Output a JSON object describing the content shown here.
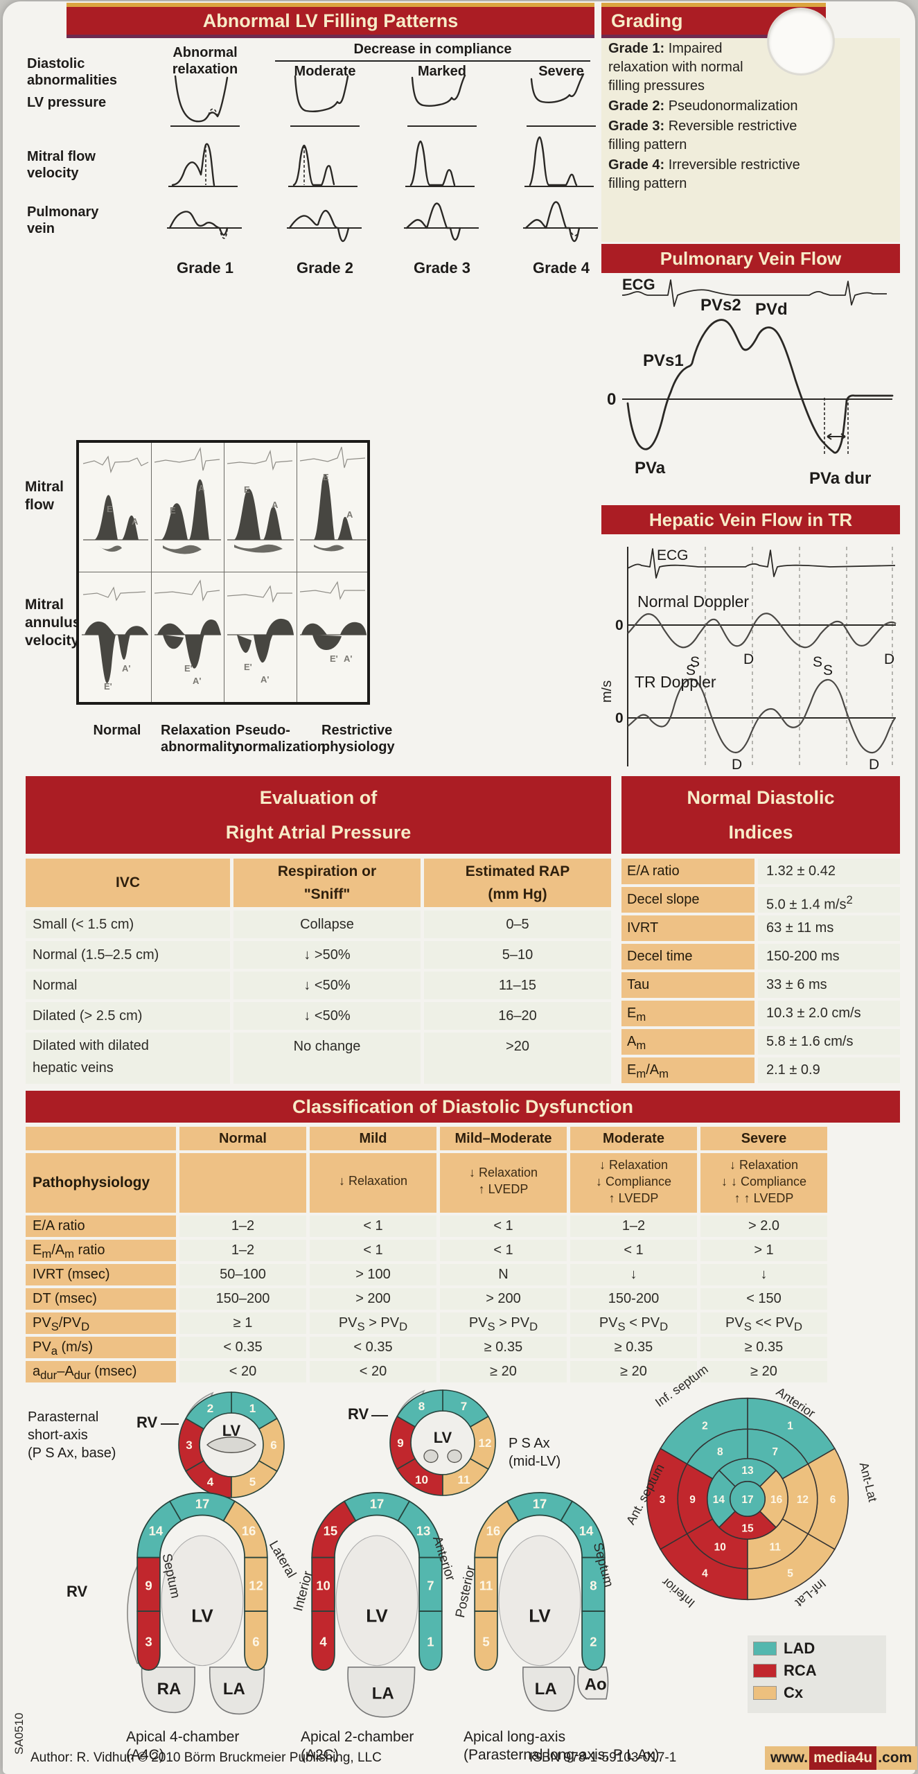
{
  "title": "Abnormal LV Filling Patterns",
  "filling": {
    "corner_label": "Diastolic|abnormalities",
    "col0": "Abnormal|relaxation",
    "group": "Decrease in compliance",
    "cols": [
      "Moderate",
      "Marked",
      "Severe"
    ],
    "rows": [
      "LV pressure",
      "Mitral flow|velocity",
      "Pulmonary|vein"
    ],
    "grades": [
      "Grade 1",
      "Grade 2",
      "Grade 3",
      "Grade 4"
    ]
  },
  "grading": {
    "title": "Grading",
    "items": [
      {
        "prefix": "Grade 1:",
        "text": " Impaired|relaxation with normal|filling pressures"
      },
      {
        "prefix": "Grade 2:",
        "text": " Pseudonormalization"
      },
      {
        "prefix": "Grade 3:",
        "text": " Reversible restrictive|filling pattern"
      },
      {
        "prefix": "Grade 4:",
        "text": " Irreversible restrictive|filling pattern"
      }
    ]
  },
  "pvflow": {
    "title": "Pulmonary Vein Flow",
    "ecg": "ECG",
    "pvs2": "PVs2",
    "pvd": "PVd",
    "pvs1": "PVs1",
    "zero": "0",
    "pva": "PVa",
    "pvadur": "PVa dur"
  },
  "hepatic": {
    "title": "Hepatic Vein Flow in TR",
    "ecg": "ECG",
    "normal_doppler": "Normal Doppler",
    "tr_doppler": "TR Doppler",
    "ms": "m/s",
    "zero1": "0",
    "zero2": "0",
    "nd_s1": "S",
    "nd_d1": "D",
    "nd_s2": "S",
    "nd_d2": "D",
    "tr_s1": "S",
    "tr_s2": "S",
    "tr_d1": "D",
    "tr_d2": "D"
  },
  "echo": {
    "row1": "Mitral|flow",
    "row2": "Mitral|annulus|velocity",
    "cols": [
      "Normal",
      "Relaxation|abnormality",
      "Pseudo-|normalization",
      "Restrictive|physiology"
    ],
    "top_letters": [
      [
        "E",
        "A"
      ],
      [
        "E",
        "A"
      ],
      [
        "E",
        "A"
      ],
      [
        "E",
        "A"
      ]
    ],
    "bot_letters": [
      [
        "E'",
        "A'"
      ],
      [
        "E'",
        "A'"
      ],
      [
        "E'",
        "A'"
      ],
      [
        "E'",
        "A'"
      ]
    ]
  },
  "rap": {
    "title": "Evaluation of|Right Atrial Pressure",
    "headers": [
      "IVC",
      "Respiration or|\"Sniff\"",
      "Estimated RAP|(mm Hg)"
    ],
    "rows": [
      {
        "ivc": "Small (< 1.5 cm)",
        "resp": "Collapse",
        "rap": "0–5"
      },
      {
        "ivc": "Normal (1.5–2.5 cm)",
        "resp": "↓ >50%",
        "rap": "5–10"
      },
      {
        "ivc": "Normal",
        "resp": "↓ <50%",
        "rap": "11–15"
      },
      {
        "ivc": "Dilated (> 2.5 cm)",
        "resp": "↓ <50%",
        "rap": "16–20"
      },
      {
        "ivc": "Dilated with dilated|hepatic veins",
        "resp": "No change",
        "rap": ">20"
      }
    ]
  },
  "indices": {
    "title": "Normal Diastolic|Indices",
    "rows": [
      {
        "label": "E/A ratio",
        "value": "1.32 ± 0.42"
      },
      {
        "label": "Decel slope",
        "value": "5.0 ± 1.4 m/s^2^"
      },
      {
        "label": "IVRT",
        "value": "63 ± 11 ms"
      },
      {
        "label": "Decel time",
        "value": "150-200 ms"
      },
      {
        "label": "Tau",
        "value": "33 ± 6 ms"
      },
      {
        "label": "E~m~",
        "value": "10.3 ± 2.0 cm/s"
      },
      {
        "label": "A~m~",
        "value": "5.8 ± 1.6 cm/s"
      },
      {
        "label": "E~m~/A~m~",
        "value": "2.1 ± 0.9"
      }
    ]
  },
  "cls": {
    "title": "Classification of Diastolic Dysfunction",
    "headers": [
      "Normal",
      "Mild",
      "Mild–Moderate",
      "Moderate",
      "Severe"
    ],
    "patho_label": "Pathophysiology",
    "patho": [
      "",
      "↓ Relaxation",
      "↓ Relaxation|↑ LVEDP",
      "↓ Relaxation|↓ Compliance|↑ LVEDP",
      "↓ Relaxation|↓ ↓ Compliance|↑ ↑ LVEDP"
    ],
    "rows": [
      {
        "label": "E/A ratio",
        "vals": [
          "1–2",
          "< 1",
          "< 1",
          "1–2",
          "> 2.0"
        ]
      },
      {
        "label": "E~m~/A~m~ ratio",
        "vals": [
          "1–2",
          "< 1",
          "< 1",
          "< 1",
          "> 1"
        ]
      },
      {
        "label": "IVRT (msec)",
        "vals": [
          "50–100",
          "> 100",
          "N",
          "↓",
          "↓"
        ]
      },
      {
        "label": "DT (msec)",
        "vals": [
          "150–200",
          "> 200",
          "> 200",
          "150-200",
          "< 150"
        ]
      },
      {
        "label": "PV~S~/PV~D~",
        "vals": [
          "≥ 1",
          "PV~S~ > PV~D~",
          "PV~S~ > PV~D~",
          "PV~S~ < PV~D~",
          "PV~S~ << PV~D~"
        ]
      },
      {
        "label": "PV~a~ (m/s)",
        "vals": [
          "< 0.35",
          "< 0.35",
          "≥ 0.35",
          "≥ 0.35",
          "≥ 0.35"
        ]
      },
      {
        "label": "a~dur~–A~dur~ (msec)",
        "vals": [
          "< 20",
          "< 20",
          "≥ 20",
          "≥ 20",
          "≥ 20"
        ]
      }
    ]
  },
  "segments": {
    "psax_base_caption": "Parasternal|short-axis|(P S Ax, base)",
    "psax_mid_caption": "P S Ax|(mid-LV)",
    "rv": "RV",
    "lv": "LV",
    "ra": "RA",
    "la": "LA",
    "ao": "Ao",
    "a4c": {
      "caption": "Apical 4-chamber|(A4C)",
      "left": "Septum",
      "right": "Lateral"
    },
    "a2c": {
      "caption": "Apical 2-chamber|(A2C)",
      "left": "Interior",
      "right": "Anterior"
    },
    "alax": {
      "caption": "Apical long-axis|(Parasternal long-axis, P L Ax)",
      "left": "Posterior",
      "right": "Septum"
    },
    "bullseye_labels": [
      "Ant. septum",
      "Anterior",
      "Ant-Lat",
      "Inf-Lat",
      "Inferior",
      "Inf. septum"
    ]
  },
  "diagrams": {
    "colors": {
      "lad": "#54b7ae",
      "rca": "#c1272d",
      "cx": "#edc07e"
    },
    "psax_base": [
      {
        "n": 1,
        "c": "lad"
      },
      {
        "n": 2,
        "c": "lad"
      },
      {
        "n": 3,
        "c": "rca"
      },
      {
        "n": 4,
        "c": "rca"
      },
      {
        "n": 5,
        "c": "cx"
      },
      {
        "n": 6,
        "c": "cx"
      }
    ],
    "psax_mid": [
      {
        "n": 7,
        "c": "lad"
      },
      {
        "n": 8,
        "c": "lad"
      },
      {
        "n": 9,
        "c": "rca"
      },
      {
        "n": 10,
        "c": "rca"
      },
      {
        "n": 11,
        "c": "cx"
      },
      {
        "n": 12,
        "c": "cx"
      }
    ],
    "bullseye": {
      "outer": [
        {
          "n": 1,
          "c": "lad"
        },
        {
          "n": 2,
          "c": "lad"
        },
        {
          "n": 3,
          "c": "rca"
        },
        {
          "n": 4,
          "c": "rca"
        },
        {
          "n": 5,
          "c": "cx"
        },
        {
          "n": 6,
          "c": "cx"
        }
      ],
      "mid": [
        {
          "n": 7,
          "c": "lad"
        },
        {
          "n": 8,
          "c": "lad"
        },
        {
          "n": 9,
          "c": "rca"
        },
        {
          "n": 10,
          "c": "rca"
        },
        {
          "n": 11,
          "c": "cx"
        },
        {
          "n": 12,
          "c": "cx"
        }
      ],
      "apical": [
        {
          "n": 13,
          "c": "lad"
        },
        {
          "n": 14,
          "c": "lad"
        },
        {
          "n": 15,
          "c": "rca"
        },
        {
          "n": 16,
          "c": "cx"
        }
      ],
      "center": {
        "n": 17,
        "c": "lad"
      }
    },
    "a4c": {
      "apex": {
        "n": 17,
        "c": "lad"
      },
      "left_arc": {
        "n": 14,
        "c": "lad"
      },
      "right_arc": {
        "n": 16,
        "c": "cx"
      },
      "left_bar": [
        {
          "n": 9,
          "c": "rca"
        },
        {
          "n": 3,
          "c": "rca"
        }
      ],
      "right_bar": [
        {
          "n": 12,
          "c": "cx"
        },
        {
          "n": 6,
          "c": "cx"
        }
      ]
    },
    "a2c": {
      "apex": {
        "n": 17,
        "c": "lad"
      },
      "left_arc": {
        "n": 15,
        "c": "rca"
      },
      "right_arc": {
        "n": 13,
        "c": "lad"
      },
      "left_bar": [
        {
          "n": 10,
          "c": "rca"
        },
        {
          "n": 4,
          "c": "rca"
        }
      ],
      "right_bar": [
        {
          "n": 7,
          "c": "lad"
        },
        {
          "n": 1,
          "c": "lad"
        }
      ]
    },
    "alax": {
      "apex": {
        "n": 17,
        "c": "lad"
      },
      "left_arc": {
        "n": 16,
        "c": "cx"
      },
      "right_arc": {
        "n": 14,
        "c": "lad"
      },
      "left_bar": [
        {
          "n": 11,
          "c": "cx"
        },
        {
          "n": 5,
          "c": "cx"
        }
      ],
      "right_bar": [
        {
          "n": 8,
          "c": "lad"
        },
        {
          "n": 2,
          "c": "lad"
        }
      ]
    }
  },
  "legend": [
    {
      "label": "LAD",
      "color": "#54b7ae"
    },
    {
      "label": "RCA",
      "color": "#c1272d"
    },
    {
      "label": "Cx",
      "color": "#edc07e"
    }
  ],
  "footer": {
    "side_code": "SA0510",
    "author": "Author: R. Vidhun © 2010 Börm Bruckmeier Publishing, LLC",
    "isbn": "ISBN 978-1-59103-017-1",
    "site_www": "www.",
    "site_name": "media4u",
    "site_tld": ".com"
  }
}
